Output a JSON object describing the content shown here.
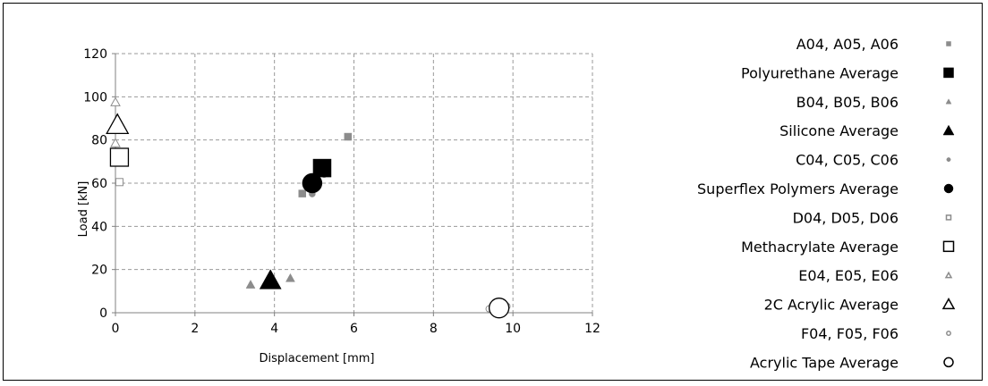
{
  "chart_data": {
    "type": "scatter",
    "title": "",
    "xlabel": "Displacement [mm]",
    "ylabel": "Load [kN]",
    "xlim": [
      0,
      12
    ],
    "ylim": [
      0,
      120
    ],
    "x_ticks": [
      0,
      2,
      4,
      6,
      8,
      10,
      12
    ],
    "y_ticks": [
      0,
      20,
      40,
      60,
      80,
      100,
      120
    ],
    "grid": true,
    "legend_position": "right",
    "series": [
      {
        "name": "A04, A05, A06",
        "marker": "square",
        "size": "small",
        "color": "#8c8c8c",
        "filled": true,
        "points": [
          {
            "x": 4.7,
            "y": 55.2
          },
          {
            "x": 5.05,
            "y": 59.5
          },
          {
            "x": 5.85,
            "y": 81.5
          }
        ]
      },
      {
        "name": "Polyurethane Average",
        "marker": "square",
        "size": "large",
        "color": "#000000",
        "filled": true,
        "points": [
          {
            "x": 5.2,
            "y": 67.0
          }
        ]
      },
      {
        "name": "B04, B05, B06",
        "marker": "triangle",
        "size": "small",
        "color": "#8c8c8c",
        "filled": true,
        "points": [
          {
            "x": 3.4,
            "y": 13.0
          },
          {
            "x": 3.9,
            "y": 15.0
          },
          {
            "x": 4.4,
            "y": 16.0
          }
        ]
      },
      {
        "name": "Silicone Average",
        "marker": "triangle",
        "size": "large",
        "color": "#000000",
        "filled": true,
        "points": [
          {
            "x": 3.9,
            "y": 15.0
          }
        ]
      },
      {
        "name": "C04, C05, C06",
        "marker": "circle",
        "size": "small",
        "color": "#8c8c8c",
        "filled": true,
        "points": [
          {
            "x": 4.95,
            "y": 55.0
          },
          {
            "x": 5.0,
            "y": 57.0
          },
          {
            "x": 5.25,
            "y": 64.0
          }
        ]
      },
      {
        "name": "Superflex Polymers Average",
        "marker": "circle",
        "size": "large",
        "color": "#000000",
        "filled": true,
        "points": [
          {
            "x": 4.95,
            "y": 60.0
          }
        ]
      },
      {
        "name": "D04, D05, D06",
        "marker": "square",
        "size": "small",
        "color": "#8c8c8c",
        "filled": false,
        "points": [
          {
            "x": 0.1,
            "y": 60.5
          },
          {
            "x": 0.1,
            "y": 72.0
          },
          {
            "x": 0.1,
            "y": 72.5
          }
        ]
      },
      {
        "name": "Methacrylate Average",
        "marker": "square",
        "size": "large",
        "color": "#000000",
        "filled": false,
        "points": [
          {
            "x": 0.1,
            "y": 72.0
          }
        ]
      },
      {
        "name": "E04, E05, E06",
        "marker": "triangle",
        "size": "small",
        "color": "#8c8c8c",
        "filled": false,
        "points": [
          {
            "x": 0.0,
            "y": 78.5
          },
          {
            "x": 0.05,
            "y": 88.0
          },
          {
            "x": 0.0,
            "y": 97.5
          }
        ]
      },
      {
        "name": "2C Acrylic Average",
        "marker": "triangle",
        "size": "large",
        "color": "#000000",
        "filled": false,
        "points": [
          {
            "x": 0.05,
            "y": 87.0
          }
        ]
      },
      {
        "name": "F04, F05, F06",
        "marker": "circle",
        "size": "small",
        "color": "#8c8c8c",
        "filled": false,
        "points": [
          {
            "x": 9.4,
            "y": 1.8
          },
          {
            "x": 9.55,
            "y": 1.8
          },
          {
            "x": 9.85,
            "y": 3.0
          }
        ]
      },
      {
        "name": "Acrylic Tape Average",
        "marker": "circle",
        "size": "large",
        "color": "#000000",
        "filled": false,
        "points": [
          {
            "x": 9.65,
            "y": 2.2
          }
        ]
      }
    ]
  }
}
